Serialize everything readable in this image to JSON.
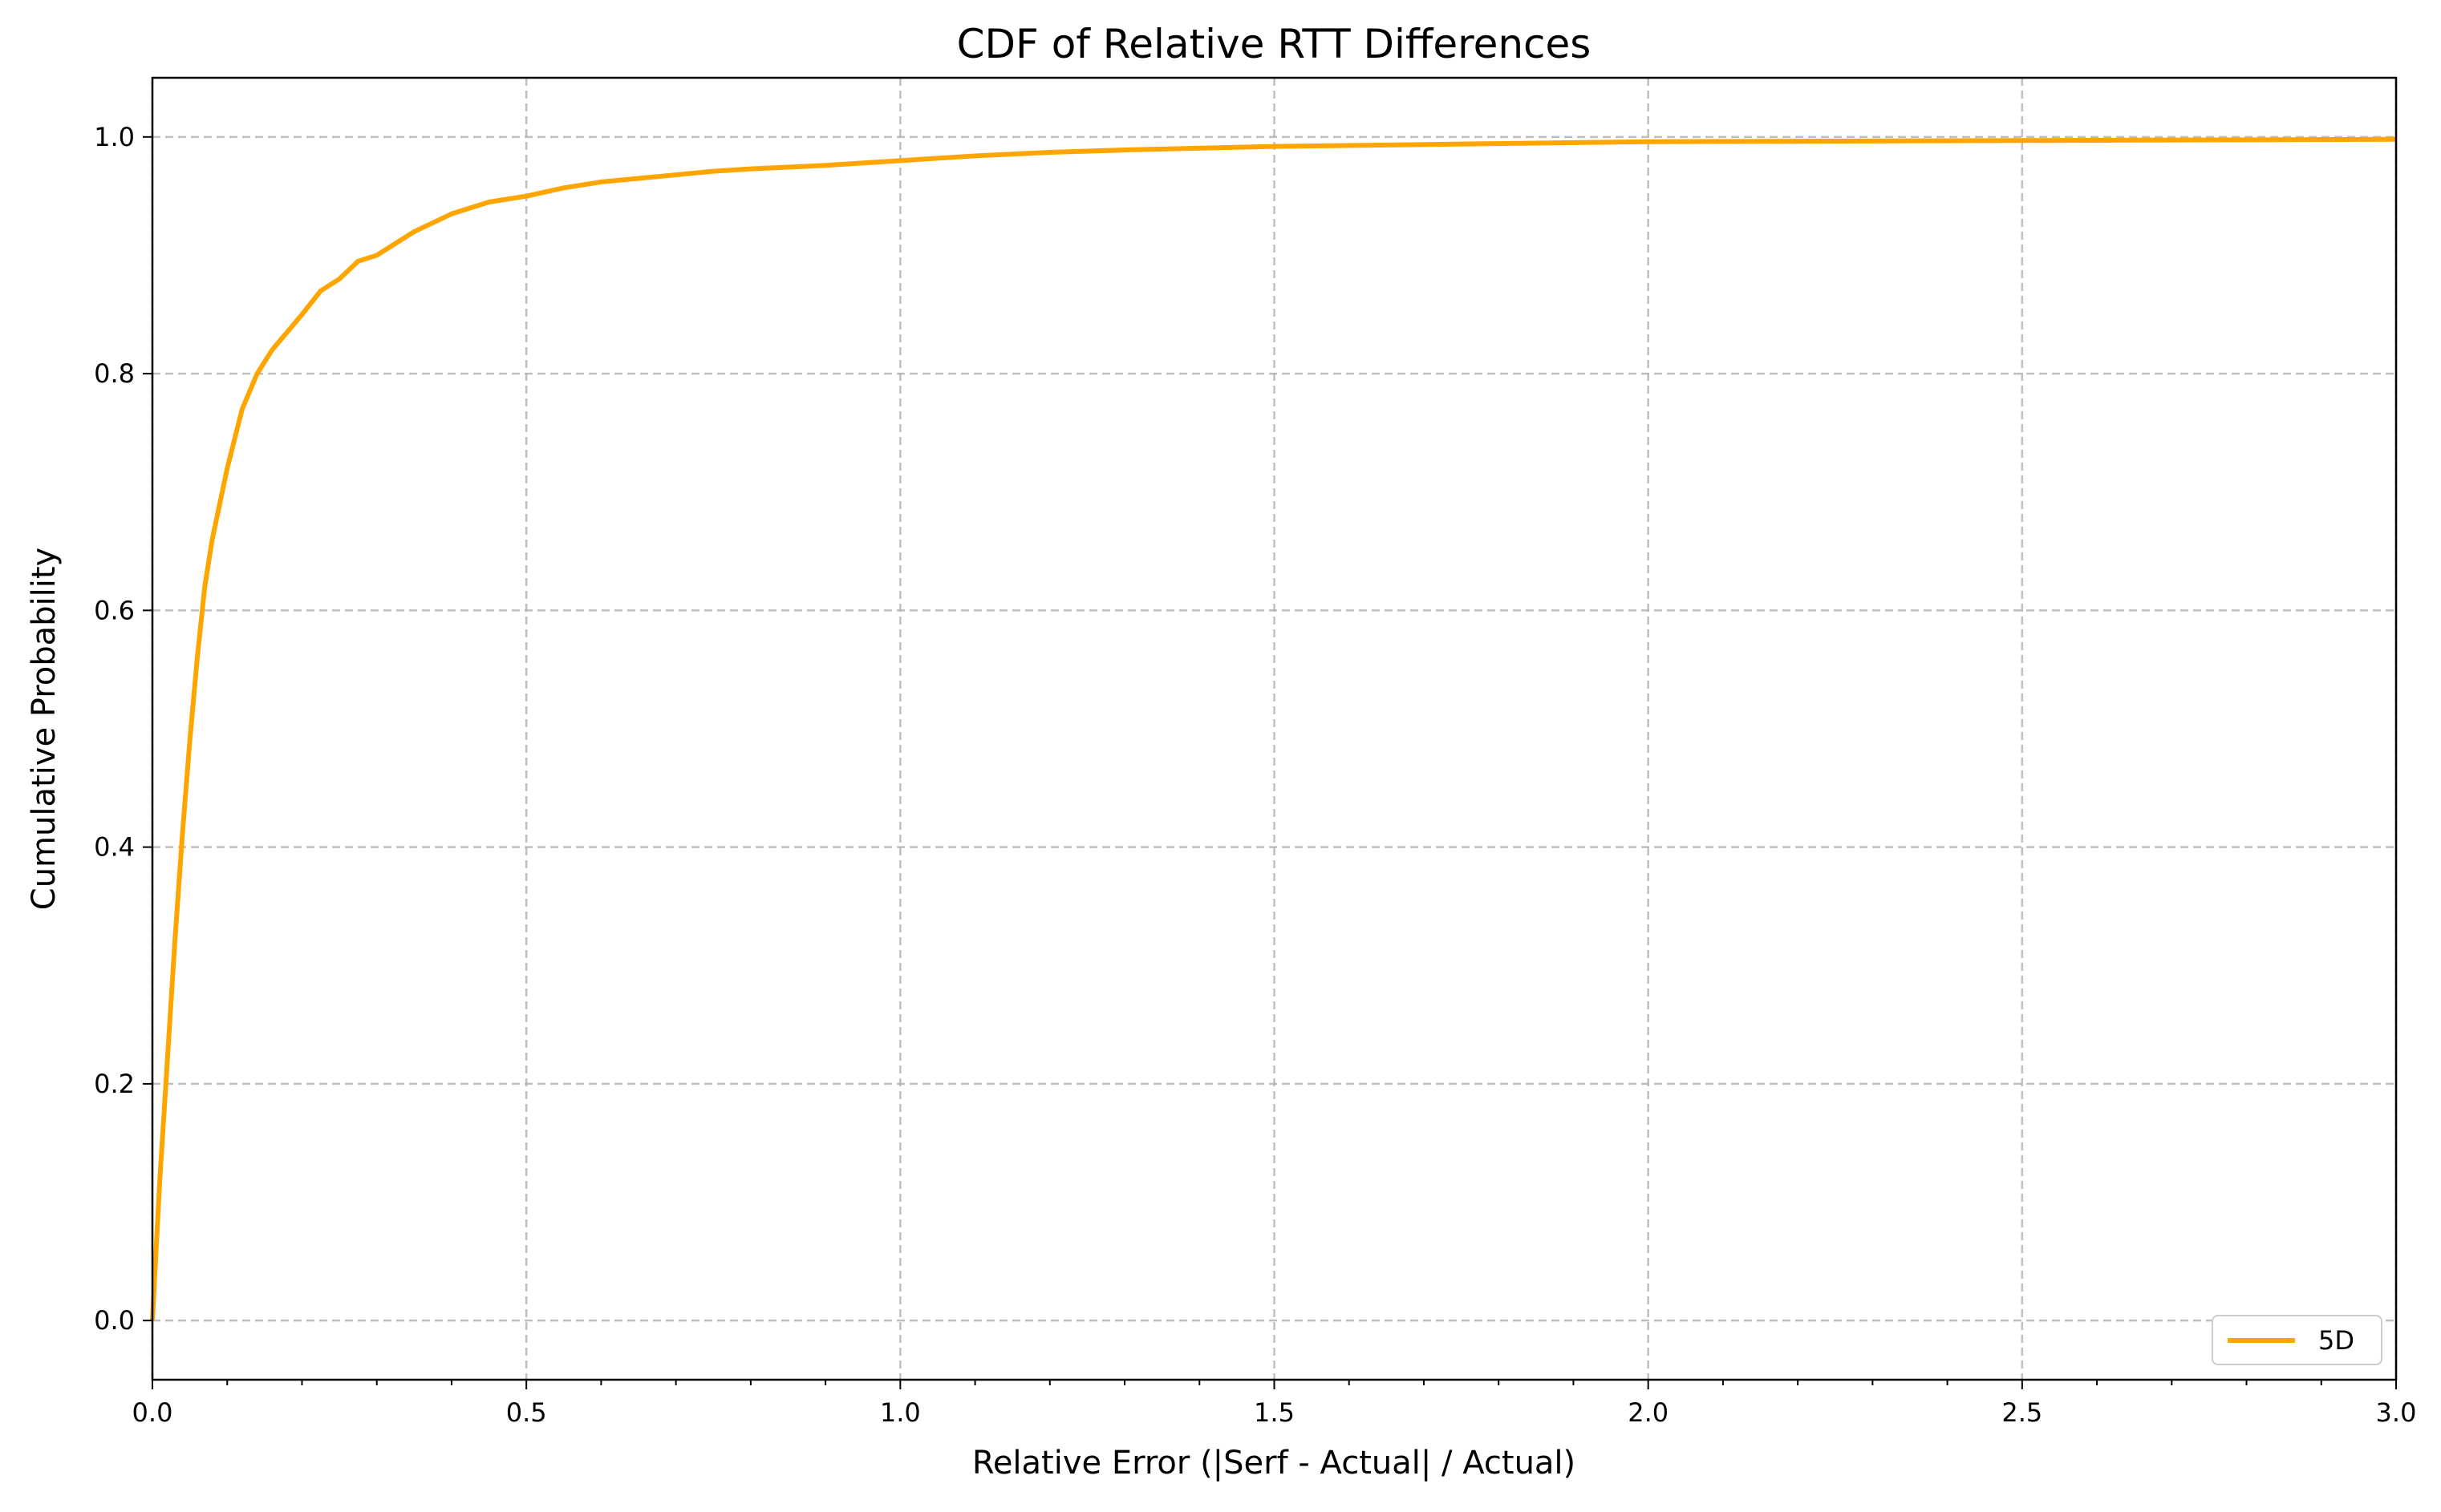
{
  "chart_data": {
    "type": "line",
    "title": "CDF of Relative RTT Differences",
    "xlabel": "Relative Error (|Serf - Actual| / Actual)",
    "ylabel": "Cumulative Probability",
    "xlim": [
      0.0,
      3.0
    ],
    "ylim": [
      -0.05,
      1.05
    ],
    "xticks": [
      0.0,
      0.5,
      1.0,
      1.5,
      2.0,
      2.5,
      3.0
    ],
    "xtick_labels": [
      "0.0",
      "0.5",
      "1.0",
      "1.5",
      "2.0",
      "2.5",
      "3.0"
    ],
    "x_minor_step": 0.1,
    "yticks": [
      0.0,
      0.2,
      0.4,
      0.6,
      0.8,
      1.0
    ],
    "ytick_labels": [
      "0.0",
      "0.2",
      "0.4",
      "0.6",
      "0.8",
      "1.0"
    ],
    "grid": true,
    "legend_position": "lower-right",
    "series": [
      {
        "name": "5D",
        "color": "#FFA500",
        "x": [
          0.0,
          0.01,
          0.02,
          0.03,
          0.04,
          0.05,
          0.06,
          0.07,
          0.08,
          0.09,
          0.1,
          0.12,
          0.14,
          0.16,
          0.18,
          0.2,
          0.225,
          0.25,
          0.275,
          0.3,
          0.35,
          0.4,
          0.45,
          0.5,
          0.55,
          0.6,
          0.65,
          0.7,
          0.75,
          0.8,
          0.9,
          1.0,
          1.1,
          1.2,
          1.3,
          1.5,
          1.75,
          2.0,
          2.5,
          3.0
        ],
        "y": [
          0.0,
          0.12,
          0.22,
          0.32,
          0.41,
          0.49,
          0.56,
          0.62,
          0.66,
          0.69,
          0.72,
          0.77,
          0.8,
          0.82,
          0.835,
          0.85,
          0.87,
          0.88,
          0.895,
          0.9,
          0.92,
          0.935,
          0.945,
          0.95,
          0.957,
          0.962,
          0.965,
          0.968,
          0.971,
          0.973,
          0.976,
          0.98,
          0.984,
          0.987,
          0.989,
          0.992,
          0.994,
          0.996,
          0.997,
          0.998
        ]
      }
    ]
  }
}
